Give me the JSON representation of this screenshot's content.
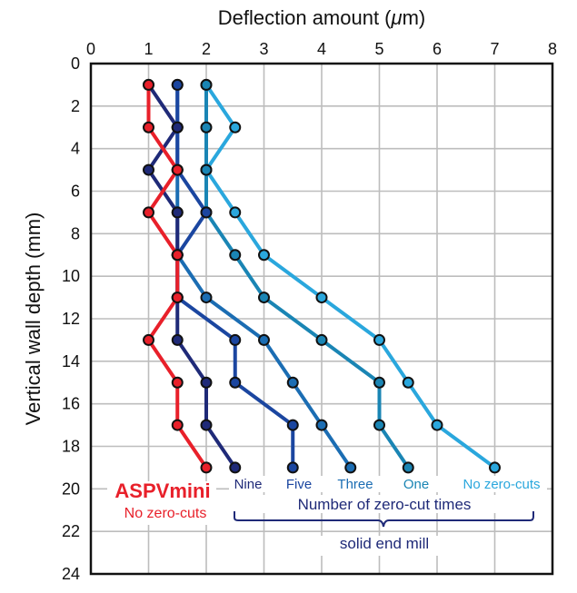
{
  "chart_data": {
    "type": "line",
    "title": "",
    "xlabel": "Deflection amount (μm)",
    "xlabel_prefix": "Deflection amount (",
    "xlabel_mu": "μ",
    "xlabel_suffix": "m)",
    "ylabel": "Vertical wall depth (mm)",
    "xlim": [
      0,
      8
    ],
    "ylim": [
      0,
      24
    ],
    "y_inverted": true,
    "x_axis_position": "top",
    "grid": true,
    "x_ticks": [
      0,
      1,
      2,
      3,
      4,
      5,
      6,
      7,
      8
    ],
    "y_ticks": [
      0,
      2,
      4,
      6,
      8,
      10,
      12,
      14,
      16,
      18,
      20,
      22,
      24
    ],
    "depth": [
      1,
      3,
      5,
      7,
      9,
      11,
      13,
      15,
      17,
      19
    ],
    "series": [
      {
        "name": "No zero-cuts (solid end mill)",
        "label": "No zero-cuts",
        "color": "#2aa7dd",
        "values": [
          2.0,
          2.5,
          2.0,
          2.5,
          3.0,
          4.0,
          5.0,
          5.5,
          6.0,
          7.0
        ]
      },
      {
        "name": "One",
        "label": "One",
        "color": "#1a85b4",
        "values": [
          2.0,
          2.0,
          2.0,
          2.0,
          2.5,
          3.0,
          4.0,
          5.0,
          5.0,
          5.5
        ]
      },
      {
        "name": "Three",
        "label": "Three",
        "color": "#1b6db3",
        "values": [
          1.5,
          1.5,
          1.5,
          1.5,
          1.5,
          2.0,
          3.0,
          3.5,
          4.0,
          4.5
        ]
      },
      {
        "name": "Five",
        "label": "Five",
        "color": "#1b46a0",
        "values": [
          1.5,
          1.5,
          1.5,
          2.0,
          1.5,
          1.5,
          2.5,
          2.5,
          3.5,
          3.5
        ]
      },
      {
        "name": "Nine",
        "label": "Nine",
        "color": "#1f2a78",
        "values": [
          1.0,
          1.5,
          1.0,
          1.5,
          1.5,
          1.5,
          1.5,
          2.0,
          2.0,
          2.5
        ]
      },
      {
        "name": "ASPVmini No zero-cuts",
        "label": "ASPVmini",
        "color": "#e8202a",
        "values": [
          1.0,
          1.0,
          1.5,
          1.0,
          1.5,
          1.5,
          1.0,
          1.5,
          1.5,
          2.0
        ]
      }
    ],
    "annotations": {
      "aspv_title": "ASPVmini",
      "aspv_subtitle": "No zero-cuts",
      "brace_label": "Number of zero-cut times",
      "brace_sublabel": "solid end mill",
      "red_color": "#e8202a",
      "navy_color": "#1f2a78"
    }
  }
}
